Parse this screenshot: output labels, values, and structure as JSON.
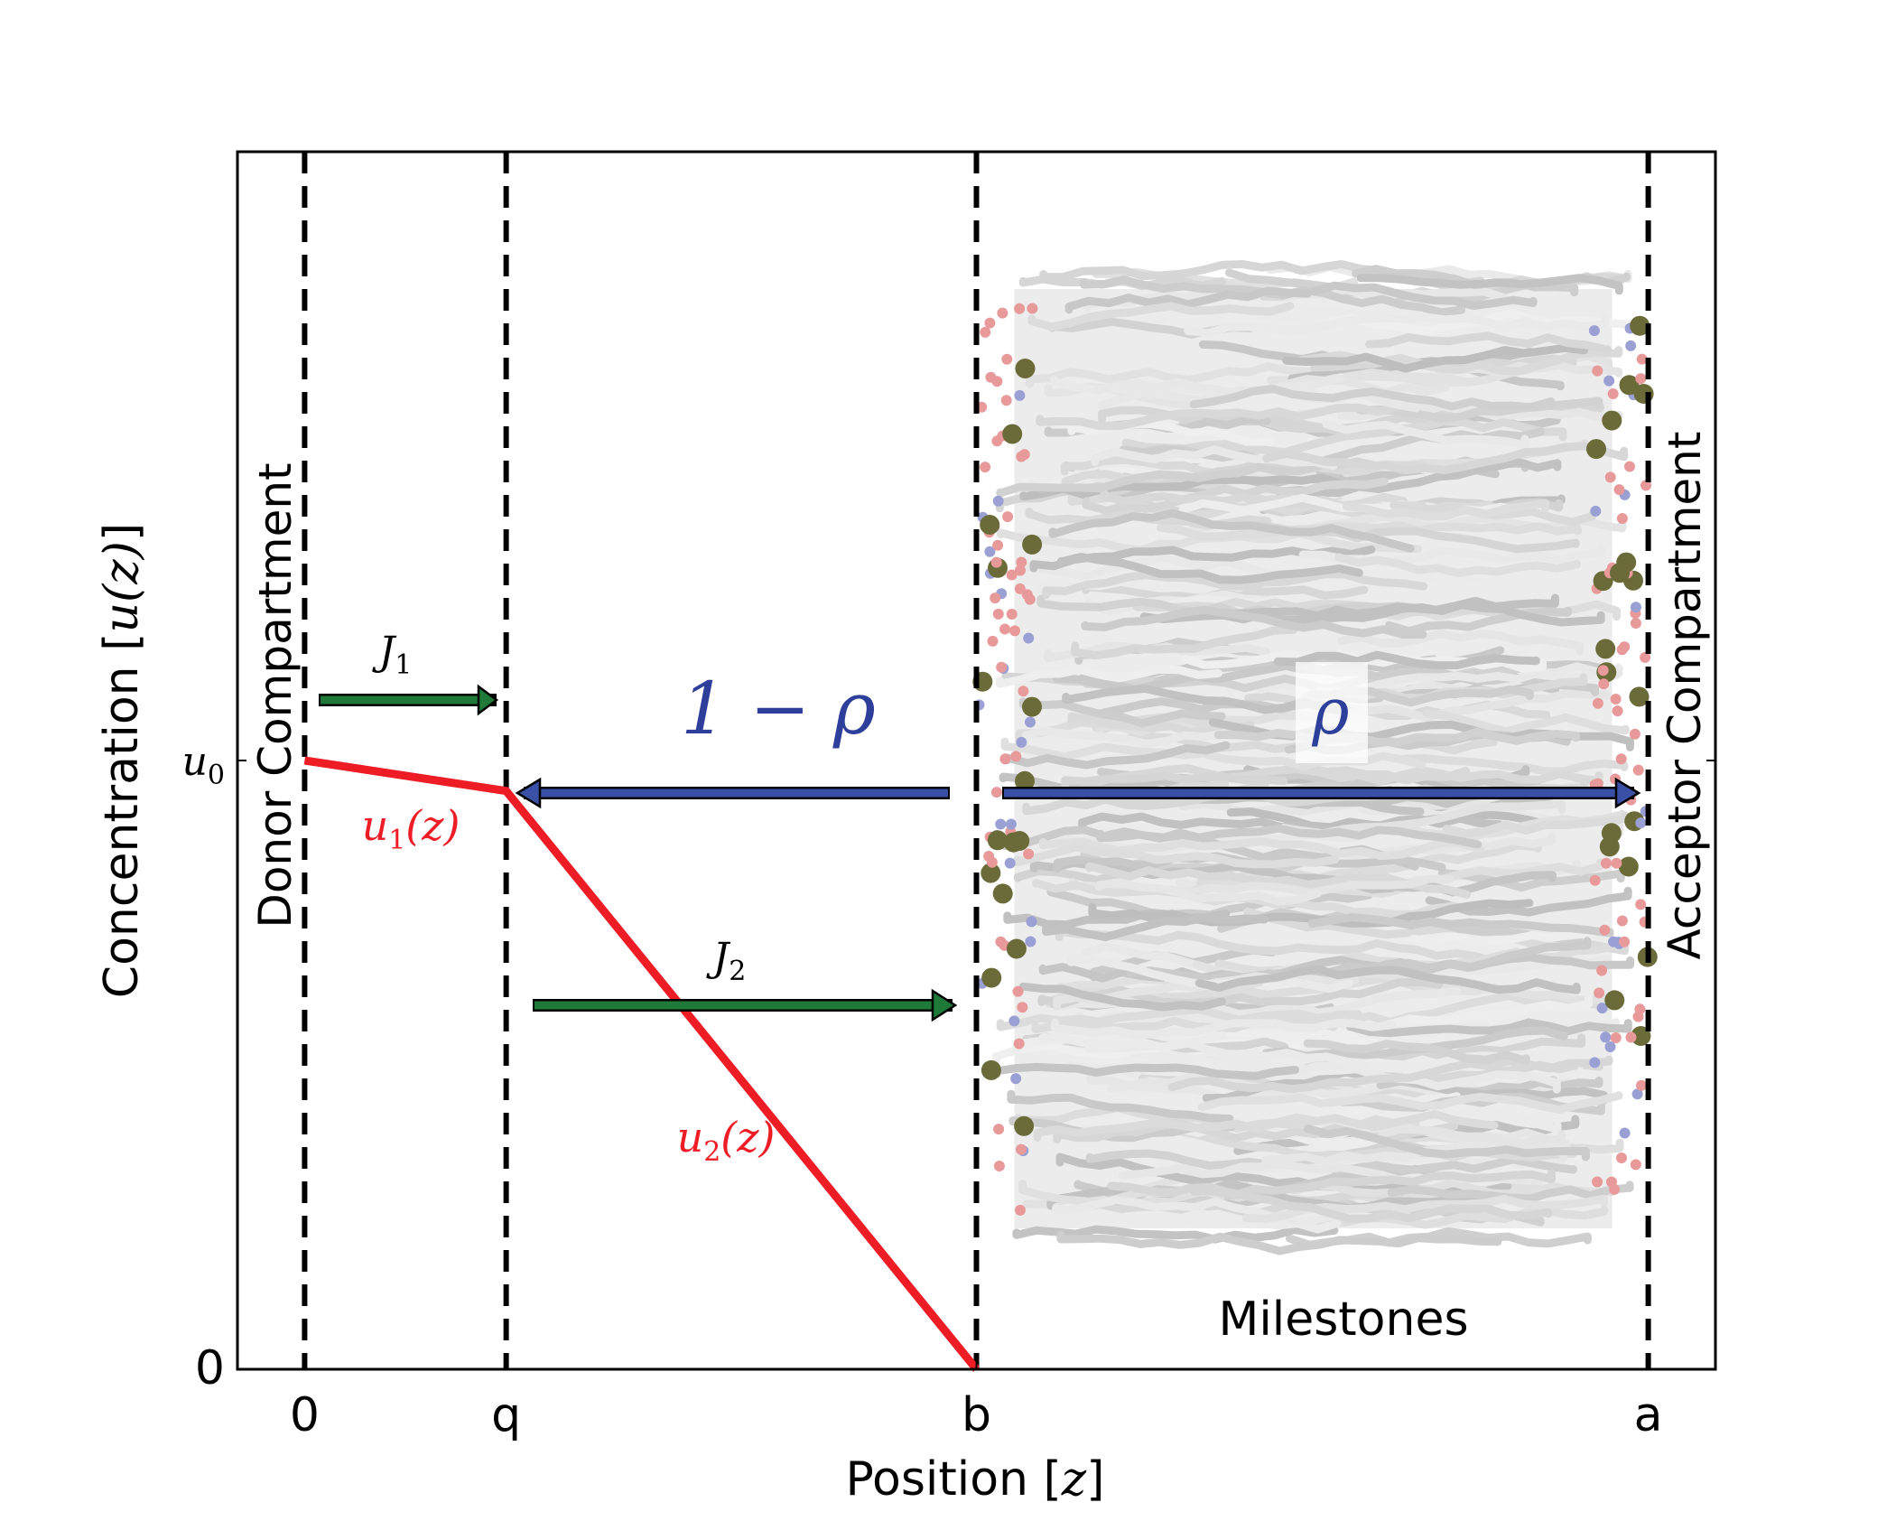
{
  "chart_data": {
    "type": "line",
    "xlabel_prefix": "Position [",
    "xlabel_var": "z",
    "xlabel_suffix": "]",
    "ylabel_prefix": "Concentration [",
    "ylabel_var": "u(z)",
    "ylabel_suffix": "]",
    "x_ticks": [
      {
        "label": "0",
        "value": 0
      },
      {
        "label": "q",
        "value": 0.15
      },
      {
        "label": "b",
        "value": 0.5
      },
      {
        "label": "a",
        "value": 1
      }
    ],
    "y_ticks": [
      {
        "label": "0",
        "value": 0,
        "math": false
      },
      {
        "label": "u",
        "sub": "0",
        "value": 1,
        "math": true
      }
    ],
    "xlim": [
      -0.05,
      1.05
    ],
    "ylim": [
      0,
      2
    ],
    "milestones": [
      0,
      0.15,
      0.5,
      1
    ],
    "series": [
      {
        "color": "#ee1c24",
        "x": [
          0,
          0.15,
          0.5
        ],
        "y": [
          1,
          0.95,
          0
        ]
      }
    ],
    "curve_labels": [
      {
        "text": "u",
        "sub": "1",
        "suffix": "(z)",
        "color": "#ee1c24"
      },
      {
        "text": "u",
        "sub": "2",
        "suffix": "(z)",
        "color": "#ee1c24"
      }
    ],
    "flux_labels": [
      {
        "text": "J",
        "sub": "1"
      },
      {
        "text": "J",
        "sub": "2"
      }
    ],
    "probability_labels": {
      "left": "1 − ρ",
      "right": "ρ"
    },
    "compartment_labels": {
      "donor": "Donor Compartment",
      "acceptor": "Acceptor Compartment",
      "milestones": "Milestones"
    },
    "colors": {
      "curve": "#ee1c24",
      "flux_arrow": "#1f7a3a",
      "prob_arrow": "#3a4fa6",
      "prob_text": "#2d3f9a",
      "membrane_tail": "#d9d9d9",
      "membrane_head_o": "#e89a9a",
      "membrane_head_p": "#6b6b3a",
      "membrane_head_n": "#9aa0d4"
    }
  }
}
